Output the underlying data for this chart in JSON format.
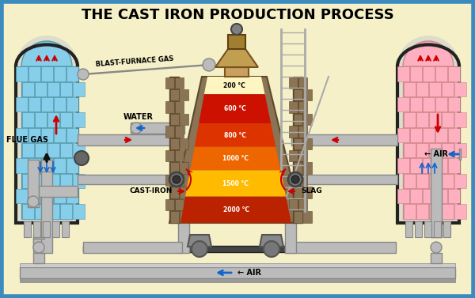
{
  "title": "THE CAST IRON PRODUCTION PROCESS",
  "bg_color": "#F5F0C8",
  "border_color": "#3B8BBE",
  "labels": {
    "flue_gas": "FLUE GAS",
    "water": "WATER",
    "blast_furnace_gas": "BLAST-FURNACE GAS",
    "cast_iron": "CAST-IRON",
    "slag": "SLAG",
    "air_right": "AIR",
    "air_bottom": "AIR"
  },
  "temps": [
    "200 °C",
    "600 °C",
    "800 °C",
    "1000 °C",
    "1500 °C",
    "2000 °C"
  ],
  "temp_colors": [
    "#FFF8C0",
    "#CC1100",
    "#DD3300",
    "#EE6600",
    "#FFBB00",
    "#BB2200"
  ],
  "colors": {
    "pipe_gray": "#BBBBBB",
    "pipe_edge": "#888888",
    "brick_furnace": "#8B7355",
    "brick_left": "#87CEEB",
    "mortar_left": "#5599AA",
    "brick_right": "#FFB0C0",
    "mortar_right": "#CC8888",
    "mortar_furnace": "#5C4A2A",
    "tower_border": "#222222",
    "arrow_red": "#CC0000",
    "arrow_blue": "#1166CC",
    "black": "#111111",
    "radiator": "#BBBBBB",
    "ladder": "#AAAAAA",
    "vessel": "#888888",
    "ground": "#444444"
  }
}
